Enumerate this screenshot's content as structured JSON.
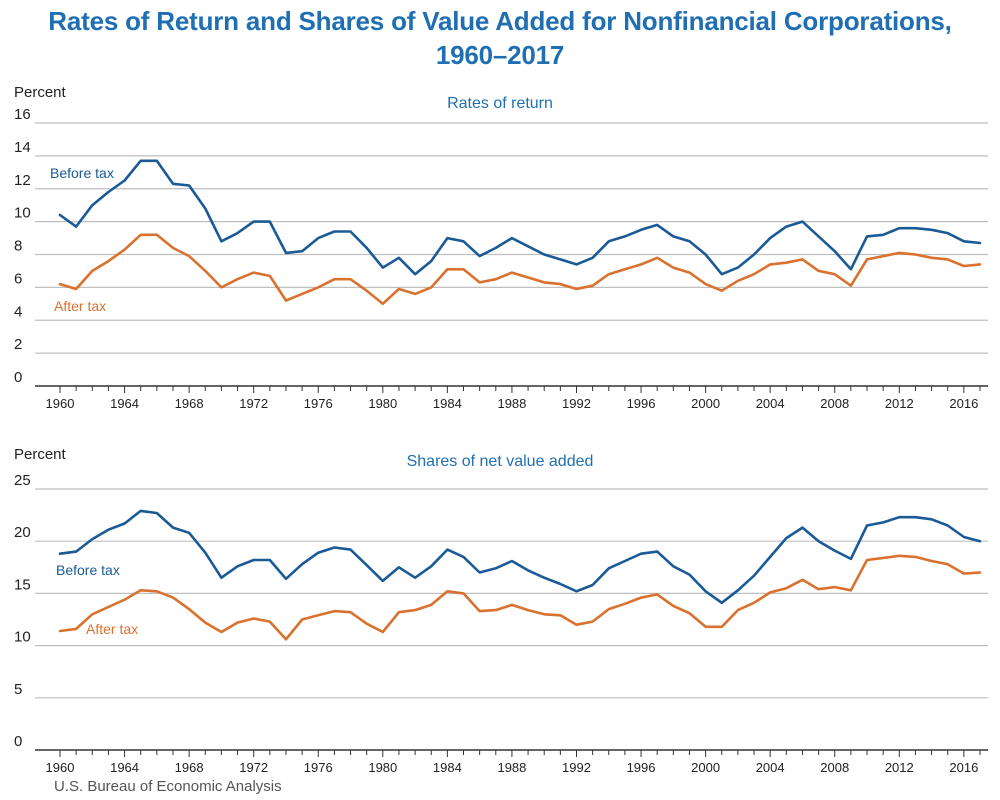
{
  "title_line1": "Rates of Return and Shares of Value Added for Nonfinancial Corporations,",
  "title_line2": "1960–2017",
  "source": "U.S. Bureau of Economic Analysis",
  "colors": {
    "title": "#1f6fb2",
    "before_tax": "#1a5a96",
    "after_tax": "#d9712f",
    "grid": "#bfbfbf",
    "axis": "#333333"
  },
  "chart_data": [
    {
      "type": "line",
      "title": "Rates of return",
      "ylabel": "Percent",
      "ylim": [
        0,
        16
      ],
      "yticks": [
        0,
        2,
        4,
        6,
        8,
        10,
        12,
        14,
        16
      ],
      "xlim": [
        1960,
        2017
      ],
      "xticks": [
        1960,
        1964,
        1968,
        1972,
        1976,
        1980,
        1984,
        1988,
        1992,
        1996,
        2000,
        2004,
        2008,
        2012,
        2016
      ],
      "grid": true,
      "x": [
        1960,
        1961,
        1962,
        1963,
        1964,
        1965,
        1966,
        1967,
        1968,
        1969,
        1970,
        1971,
        1972,
        1973,
        1974,
        1975,
        1976,
        1977,
        1978,
        1979,
        1980,
        1981,
        1982,
        1983,
        1984,
        1985,
        1986,
        1987,
        1988,
        1989,
        1990,
        1991,
        1992,
        1993,
        1994,
        1995,
        1996,
        1997,
        1998,
        1999,
        2000,
        2001,
        2002,
        2003,
        2004,
        2005,
        2006,
        2007,
        2008,
        2009,
        2010,
        2011,
        2012,
        2013,
        2014,
        2015,
        2016,
        2017
      ],
      "series": [
        {
          "name": "Before tax",
          "color": "#1a5a96",
          "values": [
            10.4,
            9.7,
            11.0,
            11.8,
            12.5,
            13.7,
            13.7,
            12.3,
            12.2,
            10.8,
            8.8,
            9.3,
            10.0,
            10.0,
            8.1,
            8.2,
            9.0,
            9.4,
            9.4,
            8.4,
            7.2,
            7.8,
            6.8,
            7.6,
            9.0,
            8.8,
            7.9,
            8.4,
            9.0,
            8.5,
            8.0,
            7.7,
            7.4,
            7.8,
            8.8,
            9.1,
            9.5,
            9.8,
            9.1,
            8.8,
            8.0,
            6.8,
            7.2,
            8.0,
            9.0,
            9.7,
            10.0,
            9.1,
            8.2,
            7.1,
            9.1,
            9.2,
            9.6,
            9.6,
            9.5,
            9.3,
            8.8,
            8.7
          ]
        },
        {
          "name": "After tax",
          "color": "#d9712f",
          "values": [
            6.2,
            5.9,
            7.0,
            7.6,
            8.3,
            9.2,
            9.2,
            8.4,
            7.9,
            7.0,
            6.0,
            6.5,
            6.9,
            6.7,
            5.2,
            5.6,
            6.0,
            6.5,
            6.5,
            5.8,
            5.0,
            5.9,
            5.6,
            6.0,
            7.1,
            7.1,
            6.3,
            6.5,
            6.9,
            6.6,
            6.3,
            6.2,
            5.9,
            6.1,
            6.8,
            7.1,
            7.4,
            7.8,
            7.2,
            6.9,
            6.2,
            5.8,
            6.4,
            6.8,
            7.4,
            7.5,
            7.7,
            7.0,
            6.8,
            6.1,
            7.7,
            7.9,
            8.1,
            8.0,
            7.8,
            7.7,
            7.3,
            7.4
          ]
        }
      ],
      "annotations": [
        "Before tax",
        "After tax"
      ]
    },
    {
      "type": "line",
      "title": "Shares of net value added",
      "ylabel": "Percent",
      "ylim": [
        0,
        25
      ],
      "yticks": [
        0,
        5,
        10,
        15,
        20,
        25
      ],
      "xlim": [
        1960,
        2017
      ],
      "xticks": [
        1960,
        1964,
        1968,
        1972,
        1976,
        1980,
        1984,
        1988,
        1992,
        1996,
        2000,
        2004,
        2008,
        2012,
        2016
      ],
      "grid": true,
      "x": [
        1960,
        1961,
        1962,
        1963,
        1964,
        1965,
        1966,
        1967,
        1968,
        1969,
        1970,
        1971,
        1972,
        1973,
        1974,
        1975,
        1976,
        1977,
        1978,
        1979,
        1980,
        1981,
        1982,
        1983,
        1984,
        1985,
        1986,
        1987,
        1988,
        1989,
        1990,
        1991,
        1992,
        1993,
        1994,
        1995,
        1996,
        1997,
        1998,
        1999,
        2000,
        2001,
        2002,
        2003,
        2004,
        2005,
        2006,
        2007,
        2008,
        2009,
        2010,
        2011,
        2012,
        2013,
        2014,
        2015,
        2016,
        2017
      ],
      "series": [
        {
          "name": "Before tax",
          "color": "#1a5a96",
          "values": [
            18.8,
            19.0,
            20.2,
            21.1,
            21.7,
            22.9,
            22.7,
            21.3,
            20.8,
            18.9,
            16.5,
            17.6,
            18.2,
            18.2,
            16.4,
            17.8,
            18.9,
            19.4,
            19.2,
            17.7,
            16.2,
            17.5,
            16.5,
            17.6,
            19.2,
            18.5,
            17.0,
            17.4,
            18.1,
            17.2,
            16.5,
            15.9,
            15.2,
            15.8,
            17.4,
            18.1,
            18.8,
            19.0,
            17.6,
            16.8,
            15.2,
            14.1,
            15.3,
            16.7,
            18.5,
            20.3,
            21.3,
            20.0,
            19.1,
            18.3,
            21.5,
            21.8,
            22.3,
            22.3,
            22.1,
            21.5,
            20.4,
            20.0
          ]
        },
        {
          "name": "After tax",
          "color": "#d9712f",
          "values": [
            11.4,
            11.6,
            13.0,
            13.7,
            14.4,
            15.3,
            15.2,
            14.6,
            13.5,
            12.2,
            11.3,
            12.2,
            12.6,
            12.3,
            10.6,
            12.5,
            12.9,
            13.3,
            13.2,
            12.1,
            11.3,
            13.2,
            13.4,
            13.9,
            15.2,
            15.0,
            13.3,
            13.4,
            13.9,
            13.4,
            13.0,
            12.9,
            12.0,
            12.3,
            13.5,
            14.0,
            14.6,
            14.9,
            13.8,
            13.1,
            11.8,
            11.8,
            13.4,
            14.1,
            15.1,
            15.5,
            16.3,
            15.4,
            15.6,
            15.3,
            18.2,
            18.4,
            18.6,
            18.5,
            18.1,
            17.8,
            16.9,
            17.0
          ]
        }
      ],
      "annotations": [
        "Before tax",
        "After tax"
      ]
    }
  ]
}
